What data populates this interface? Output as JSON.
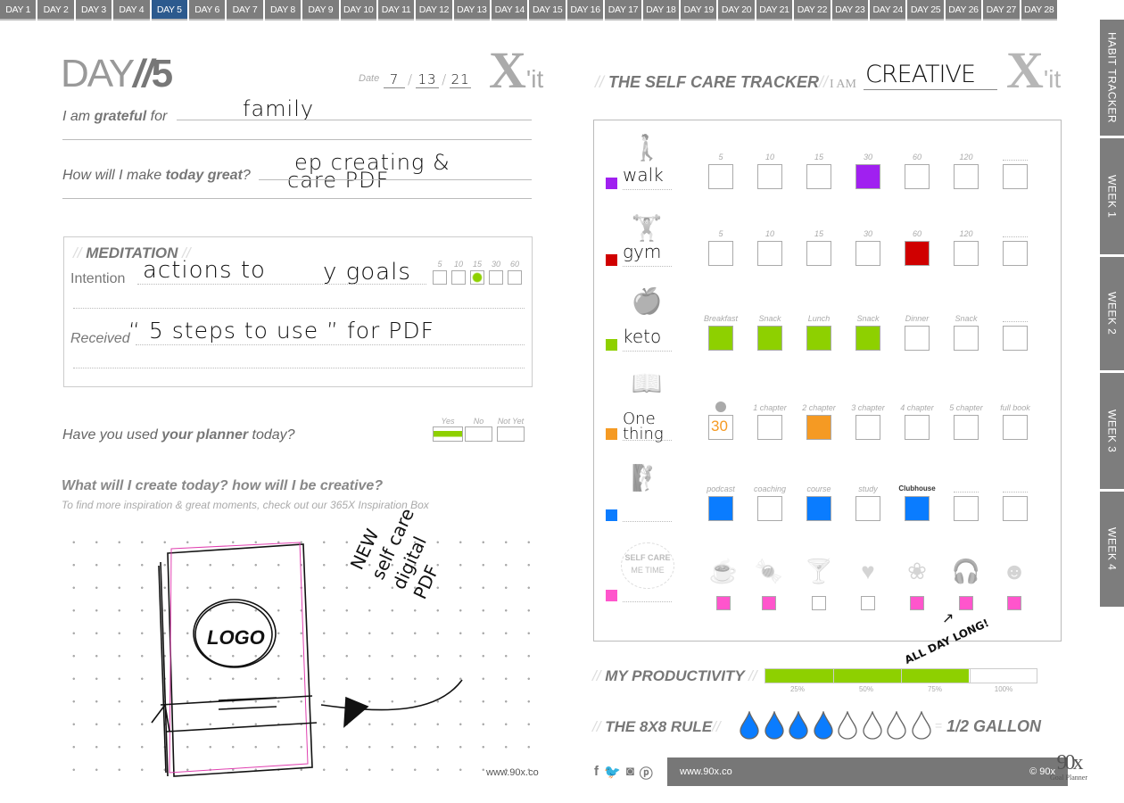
{
  "day_tabs": [
    "DAY 1",
    "DAY 2",
    "DAY 3",
    "DAY 4",
    "DAY 5",
    "DAY 6",
    "DAY 7",
    "DAY 8",
    "DAY 9",
    "DAY 10",
    "DAY 11",
    "DAY 12",
    "DAY 13",
    "DAY 14",
    "DAY 15",
    "DAY 16",
    "DAY 17",
    "DAY 18",
    "DAY 19",
    "DAY 20",
    "DAY 21",
    "DAY 22",
    "DAY 23",
    "DAY 24",
    "DAY 25",
    "DAY 26",
    "DAY 27",
    "DAY 28"
  ],
  "active_tab": "DAY 5",
  "side_tabs": [
    "HABIT TRACKER",
    "WEEK 1",
    "WEEK 2",
    "WEEK 3",
    "WEEK 4"
  ],
  "colors": {
    "tab": "#7d7d7d",
    "active_tab": "#2c5a8e",
    "purple": "#a020f0",
    "red": "#d00000",
    "green": "#8ed000",
    "orange": "#f59a23",
    "blue": "#0a7cff",
    "pink": "#ff55cc"
  },
  "left": {
    "day_word": "DAY",
    "day_sep": "//",
    "day_num": "5",
    "date_label": "Date",
    "date_month": "7",
    "date_day": "13",
    "date_year": "21",
    "date_sep": "/",
    "xit_x": "X",
    "xit_it": "'it",
    "grateful_pre": "I am ",
    "grateful_bold": "grateful",
    "grateful_post": " for",
    "grateful_value": "family",
    "great_pre": "How will I make ",
    "great_bold": "today great",
    "great_post": "?",
    "great_value_1": "ep creating &",
    "great_value_2": "care PDF",
    "meditation": {
      "title": "MEDITATION",
      "slashes": "//",
      "intention_label": "Intention",
      "intention_value_1": "actions to",
      "intention_value_2": "y goals",
      "times": [
        "5",
        "10",
        "15",
        "30",
        "60"
      ],
      "selected_time": "15",
      "received_label": "Received",
      "received_value": "“ 5 steps to use ” for PDF"
    },
    "planner_pre": "Have you used ",
    "planner_bold": "your planner",
    "planner_post": " today?",
    "planner_options": [
      "Yes",
      "No",
      "Not Yet"
    ],
    "planner_selected": "Yes",
    "create_title": "What will I create today? how will I be creative?",
    "create_sub": "To find more inspiration & great moments, check out our 365X Inspiration Box",
    "sketch_logo": "LOGO",
    "sketch_note": [
      "NEW",
      "self care",
      "digital",
      "PDF"
    ],
    "website": "www.90x.co"
  },
  "right": {
    "title": "THE SELF CARE TRACKER",
    "slashes": "//",
    "i_am": "I AM",
    "i_am_value": "CREATIVE",
    "xit_x": "X",
    "xit_it": "'it",
    "rows": [
      {
        "icon": "walking-person-icon",
        "label": "walk",
        "color": "#a020f0",
        "cells": [
          {
            "label": "5"
          },
          {
            "label": "10"
          },
          {
            "label": "15"
          },
          {
            "label": "30",
            "filled": true
          },
          {
            "label": "60"
          },
          {
            "label": "120"
          },
          {
            "label": ""
          }
        ]
      },
      {
        "icon": "dumbbell-icon",
        "label": "gym",
        "color": "#d00000",
        "cells": [
          {
            "label": "5"
          },
          {
            "label": "10"
          },
          {
            "label": "15"
          },
          {
            "label": "30"
          },
          {
            "label": "60",
            "filled": true
          },
          {
            "label": "120"
          },
          {
            "label": ""
          }
        ]
      },
      {
        "icon": "apple-icon",
        "label": "keto",
        "color": "#8ed000",
        "cells": [
          {
            "label": "Breakfast",
            "filled": true
          },
          {
            "label": "Snack",
            "filled": true
          },
          {
            "label": "Lunch",
            "filled": true
          },
          {
            "label": "Snack",
            "filled": true
          },
          {
            "label": "Dinner"
          },
          {
            "label": "Snack"
          },
          {
            "label": ""
          }
        ]
      },
      {
        "icon": "book-icon",
        "label": "One thing",
        "color": "#f59a23",
        "cells": [
          {
            "label": "",
            "value": "30",
            "timer": true
          },
          {
            "label": "1 chapter"
          },
          {
            "label": "2 chapter",
            "filled": true
          },
          {
            "label": "3 chapter"
          },
          {
            "label": "4 chapter"
          },
          {
            "label": "5 chapter"
          },
          {
            "label": "full book"
          }
        ]
      },
      {
        "icon": "stairs-climber-icon",
        "label": "",
        "color": "#0a7cff",
        "cells": [
          {
            "label": "podcast",
            "filled": true
          },
          {
            "label": "coaching"
          },
          {
            "label": "course",
            "filled": true
          },
          {
            "label": "study"
          },
          {
            "label": "Clubhouse",
            "filled": true
          },
          {
            "label": ""
          },
          {
            "label": ""
          }
        ]
      }
    ],
    "self_care": {
      "badge_top": "SELF CARE",
      "badge_bottom": "ME TIME",
      "color": "#ff55cc",
      "items": [
        {
          "icon": "coffee-cup-icon",
          "glyph": "☕",
          "filled": true
        },
        {
          "icon": "candy-icon",
          "glyph": "🍬",
          "filled": true
        },
        {
          "icon": "cocktail-icon",
          "glyph": "🍸",
          "filled": false
        },
        {
          "icon": "heart-icon",
          "glyph": "♥",
          "filled": false
        },
        {
          "icon": "lotus-icon",
          "glyph": "❀",
          "filled": true
        },
        {
          "icon": "headphones-icon",
          "glyph": "🎧",
          "filled": true
        },
        {
          "icon": "head-mind-icon",
          "glyph": "☻",
          "filled": true
        }
      ],
      "note": "ALL DAY LONG!"
    },
    "productivity": {
      "title": "MY PRODUCTIVITY",
      "value_percent": 75,
      "ticks": [
        "25%",
        "50%",
        "75%",
        "100%"
      ]
    },
    "water": {
      "title": "THE 8X8 RULE",
      "total": 8,
      "filled": 4,
      "eq": "=",
      "result": "1/2 GALLON"
    },
    "footer": {
      "social": [
        "facebook-icon",
        "twitter-icon",
        "instagram-icon",
        "pinterest-icon"
      ],
      "website": "www.90x.co",
      "copyright": "© 90x",
      "logo": "90x",
      "logo_sub": "Goal Planner"
    }
  }
}
